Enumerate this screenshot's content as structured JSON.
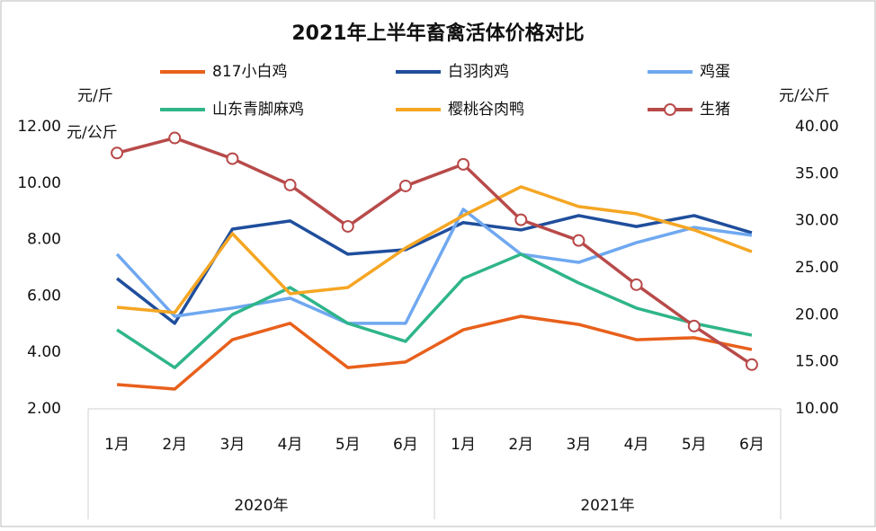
{
  "chart_data": {
    "type": "line",
    "title": "2021年上半年畜禽活体价格对比",
    "y_unit_label": "元/斤",
    "y_unit_label_2": "元/公斤",
    "y2_unit_label": "元/公斤",
    "categories": [
      "1月",
      "2月",
      "3月",
      "4月",
      "5月",
      "6月",
      "1月",
      "2月",
      "3月",
      "4月",
      "5月",
      "6月"
    ],
    "category_groups": [
      "2020年",
      "2021年"
    ],
    "ylim": [
      2,
      12
    ],
    "yticks": [
      {
        "value": 2,
        "label": "2.00"
      },
      {
        "value": 4,
        "label": "4.00"
      },
      {
        "value": 6,
        "label": "6.00"
      },
      {
        "value": 8,
        "label": "8.00"
      },
      {
        "value": 10,
        "label": "10.00"
      },
      {
        "value": 12,
        "label": "12.00"
      }
    ],
    "y2lim": [
      10,
      40
    ],
    "y2ticks": [
      {
        "value": 10,
        "label": "10.00"
      },
      {
        "value": 15,
        "label": "15.00"
      },
      {
        "value": 20,
        "label": "20.00"
      },
      {
        "value": 25,
        "label": "25.00"
      },
      {
        "value": 30,
        "label": "30.00"
      },
      {
        "value": 35,
        "label": "35.00"
      },
      {
        "value": 40,
        "label": "40.00"
      }
    ],
    "series": [
      {
        "name": "817小白鸡",
        "color": "#e8601c",
        "values": [
          2.86,
          2.7,
          4.45,
          5.03,
          3.46,
          3.66,
          4.8,
          5.28,
          4.99,
          4.45,
          4.52,
          4.1
        ]
      },
      {
        "name": "白羽肉鸡",
        "color": "#1f4e9c",
        "values": [
          6.62,
          5.03,
          8.37,
          8.66,
          7.48,
          7.64,
          8.6,
          8.34,
          8.85,
          8.46,
          8.85,
          8.24
        ]
      },
      {
        "name": "鸡蛋",
        "color": "#6fa8f0",
        "values": [
          7.48,
          5.28,
          5.57,
          5.92,
          5.03,
          5.03,
          9.07,
          7.48,
          7.19,
          7.89,
          8.43,
          8.15
        ]
      },
      {
        "name": "山东青脚麻鸡",
        "color": "#2fb58a",
        "values": [
          4.8,
          3.46,
          5.34,
          6.3,
          5.03,
          4.39,
          6.62,
          7.48,
          6.46,
          5.57,
          5.03,
          4.61
        ]
      },
      {
        "name": "樱桃谷肉鸭",
        "color": "#f5a623",
        "values": [
          5.6,
          5.41,
          8.21,
          6.08,
          6.3,
          7.7,
          8.85,
          9.87,
          9.17,
          8.91,
          8.34,
          7.57
        ]
      },
      {
        "name": "生猪",
        "color": "#b84a4a",
        "axis": "y2",
        "markers": true,
        "values": [
          37.2,
          38.8,
          36.6,
          33.8,
          29.4,
          33.7,
          36.0,
          30.1,
          27.9,
          23.2,
          18.8,
          14.7
        ]
      }
    ]
  }
}
